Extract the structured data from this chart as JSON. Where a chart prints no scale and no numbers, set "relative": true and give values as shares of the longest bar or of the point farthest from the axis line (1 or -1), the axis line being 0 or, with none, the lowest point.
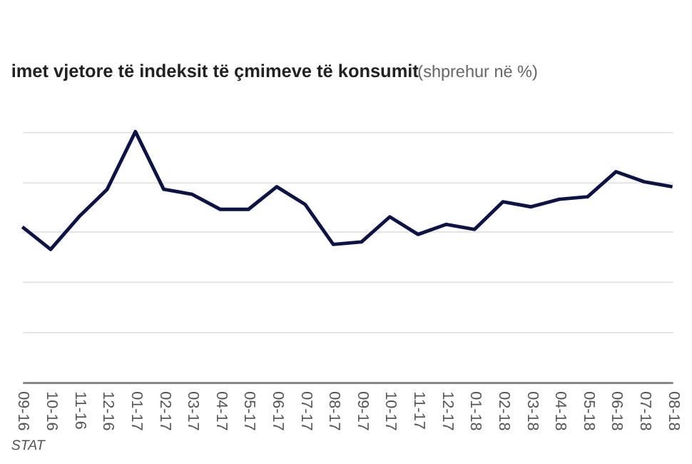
{
  "chart_data": {
    "type": "line",
    "title": "imet vjetore të indeksit të çmimeve të konsumit",
    "subtitle": "(shprehur në %)",
    "relative": true,
    "grid": "y",
    "legend": false,
    "marker": "none",
    "line_style": "solid",
    "categories": [
      "09-16",
      "10-16",
      "11-16",
      "12-16",
      "01-17",
      "02-17",
      "03-17",
      "04-17",
      "05-17",
      "06-17",
      "07-17",
      "08-17",
      "09-17",
      "10-17",
      "11-17",
      "12-17",
      "01-18",
      "02-18",
      "03-18",
      "04-18",
      "05-18",
      "06-18",
      "07-18",
      "08-18"
    ],
    "series": [
      {
        "color": "#0d1445",
        "values": [
          0.62,
          0.53,
          0.66,
          0.77,
          1,
          0.77,
          0.75,
          0.69,
          0.69,
          0.78,
          0.71,
          0.55,
          0.56,
          0.66,
          0.59,
          0.63,
          0.61,
          0.72,
          0.7,
          0.73,
          0.74,
          0.84,
          0.8,
          0.78
        ]
      }
    ],
    "annotations": [
      "STAT"
    ]
  }
}
